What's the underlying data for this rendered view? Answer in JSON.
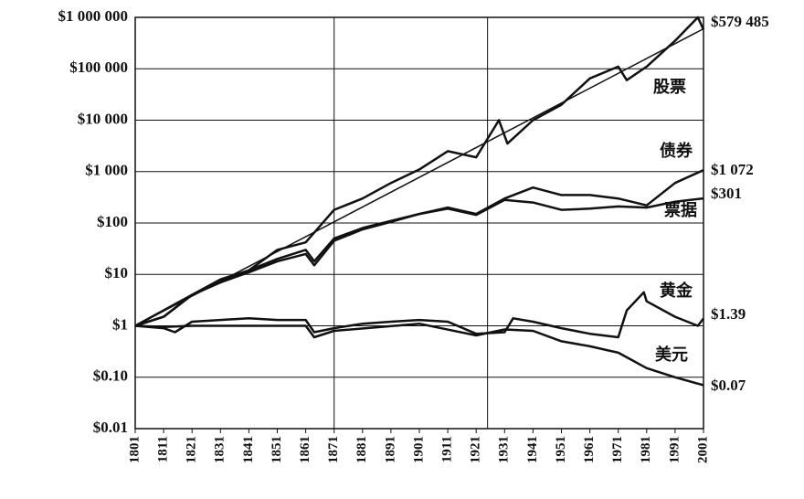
{
  "chart_data": {
    "type": "line",
    "log_scale": true,
    "grid": true,
    "xlim": [
      1801,
      2001
    ],
    "xticks": [
      1801,
      1811,
      1821,
      1831,
      1841,
      1851,
      1861,
      1871,
      1881,
      1891,
      1901,
      1911,
      1921,
      1931,
      1941,
      1951,
      1961,
      1971,
      1981,
      1991,
      2001
    ],
    "ylim": [
      0.01,
      1000000
    ],
    "yticks": [
      {
        "value": 0.01,
        "label": "$0.01"
      },
      {
        "value": 0.1,
        "label": "$0.10"
      },
      {
        "value": 1,
        "label": "$1"
      },
      {
        "value": 10,
        "label": "$10"
      },
      {
        "value": 100,
        "label": "$100"
      },
      {
        "value": 1000,
        "label": "$1 000"
      },
      {
        "value": 10000,
        "label": "$10 000"
      },
      {
        "value": 100000,
        "label": "$100 000"
      },
      {
        "value": 1000000,
        "label": "$1 000 000"
      }
    ],
    "vlines": [
      1871,
      1925
    ],
    "trend": {
      "x": [
        1801,
        2001
      ],
      "values": [
        1,
        600000
      ]
    },
    "series": [
      {
        "name": "股票",
        "color": "#111111",
        "end_label": "$579 485",
        "x": [
          1801,
          1811,
          1821,
          1831,
          1841,
          1851,
          1861,
          1871,
          1881,
          1891,
          1901,
          1911,
          1921,
          1929,
          1932,
          1941,
          1951,
          1961,
          1971,
          1974,
          1981,
          1991,
          1999,
          2001
        ],
        "values": [
          1,
          2,
          4,
          8,
          12,
          30,
          42,
          180,
          300,
          600,
          1100,
          2500,
          1900,
          10000,
          3500,
          10000,
          20000,
          65000,
          110000,
          60000,
          110000,
          350000,
          1000000,
          579485
        ]
      },
      {
        "name": "债券",
        "color": "#111111",
        "end_label": "$1 072",
        "x": [
          1801,
          1811,
          1821,
          1831,
          1841,
          1851,
          1861,
          1864,
          1871,
          1881,
          1891,
          1901,
          1911,
          1921,
          1931,
          1941,
          1951,
          1961,
          1971,
          1981,
          1991,
          2001
        ],
        "values": [
          1,
          1.5,
          4,
          7,
          12,
          20,
          30,
          18,
          50,
          80,
          110,
          150,
          200,
          150,
          300,
          490,
          350,
          350,
          300,
          220,
          600,
          1072
        ]
      },
      {
        "name": "票据",
        "color": "#111111",
        "end_label": "$301",
        "x": [
          1801,
          1811,
          1821,
          1831,
          1841,
          1851,
          1861,
          1864,
          1871,
          1881,
          1891,
          1901,
          1911,
          1921,
          1931,
          1941,
          1951,
          1961,
          1971,
          1981,
          1991,
          2001
        ],
        "values": [
          1,
          1.5,
          4,
          7,
          11,
          18,
          25,
          15,
          45,
          75,
          105,
          150,
          190,
          144,
          280,
          250,
          180,
          190,
          210,
          200,
          260,
          301
        ]
      },
      {
        "name": "黄金",
        "color": "#111111",
        "end_label": "$1.39",
        "x": [
          1801,
          1811,
          1815,
          1821,
          1831,
          1841,
          1851,
          1861,
          1864,
          1871,
          1881,
          1891,
          1901,
          1911,
          1921,
          1931,
          1934,
          1941,
          1951,
          1961,
          1971,
          1974,
          1980,
          1981,
          1991,
          1999,
          2001
        ],
        "values": [
          1,
          0.9,
          0.75,
          1.2,
          1.3,
          1.4,
          1.3,
          1.3,
          0.75,
          0.9,
          1.1,
          1.2,
          1.3,
          1.2,
          0.7,
          0.75,
          1.4,
          1.2,
          0.9,
          0.7,
          0.6,
          2,
          4.5,
          3,
          1.5,
          1,
          1.39
        ]
      },
      {
        "name": "美元",
        "color": "#111111",
        "end_label": "$0.07",
        "x": [
          1801,
          1811,
          1821,
          1851,
          1861,
          1864,
          1871,
          1901,
          1921,
          1931,
          1941,
          1951,
          1961,
          1971,
          1981,
          1991,
          2001
        ],
        "values": [
          1,
          0.95,
          1,
          1,
          1,
          0.6,
          0.8,
          1.1,
          0.65,
          0.85,
          0.8,
          0.5,
          0.4,
          0.3,
          0.15,
          0.1,
          0.07
        ]
      }
    ]
  }
}
